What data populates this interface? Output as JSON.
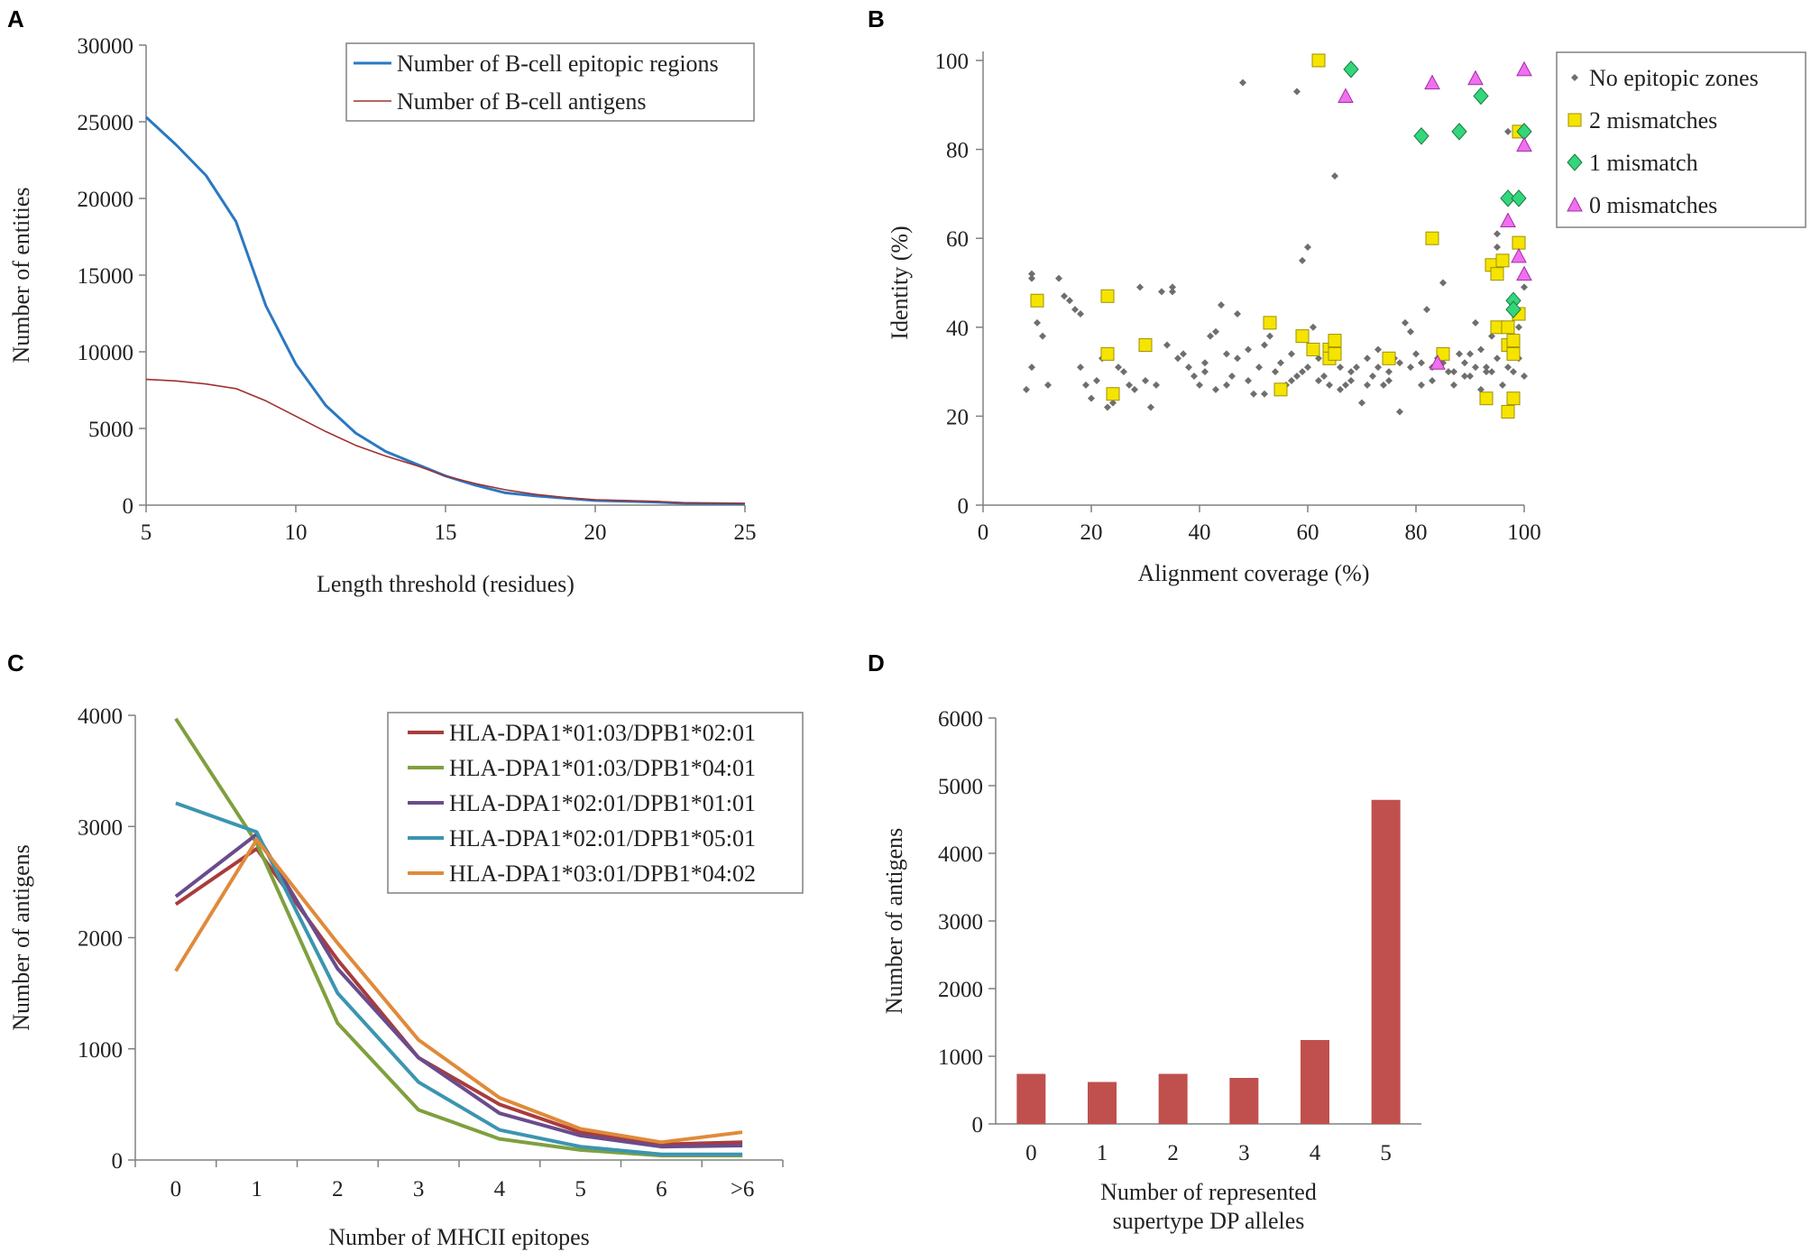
{
  "colors": {
    "axis": "#808080",
    "text": "#222222",
    "a_regions": "#2a78c2",
    "a_antigens": "#a03030",
    "b_none": "#6e6e6e",
    "b_two": "#f5e400",
    "b_one": "#33d67a",
    "b_zero": "#f06ef0",
    "c_series": [
      "#a83c3c",
      "#7fa03e",
      "#6a4c8c",
      "#3b95b0",
      "#e08a3a"
    ],
    "d_bar": "#c0504d"
  },
  "chart_data": [
    {
      "panel": "A",
      "type": "line",
      "xlabel": "Length threshold (residues)",
      "ylabel": "Number of entities",
      "xlim": [
        5,
        25
      ],
      "ylim": [
        0,
        30000
      ],
      "xticks": [
        "5",
        "10",
        "15",
        "20",
        "25"
      ],
      "yticks": [
        "0",
        "5000",
        "10000",
        "15000",
        "20000",
        "25000",
        "30000"
      ],
      "legend_position": "top-right",
      "x": [
        5,
        6,
        7,
        8,
        9,
        10,
        11,
        12,
        13,
        14,
        15,
        16,
        17,
        18,
        19,
        20,
        21,
        22,
        23,
        24,
        25
      ],
      "series": [
        {
          "name": "Number of B-cell epitopic regions",
          "values": [
            25300,
            23500,
            21500,
            18500,
            13000,
            9200,
            6500,
            4700,
            3500,
            2700,
            1900,
            1300,
            800,
            600,
            450,
            300,
            250,
            200,
            120,
            100,
            80
          ]
        },
        {
          "name": "Number of B-cell antigens",
          "values": [
            8200,
            8100,
            7900,
            7600,
            6800,
            5800,
            4800,
            3900,
            3200,
            2600,
            1900,
            1400,
            1000,
            700,
            500,
            350,
            300,
            250,
            150,
            120,
            100
          ]
        }
      ]
    },
    {
      "panel": "B",
      "type": "scatter",
      "xlabel": "Alignment coverage (%)",
      "ylabel": "Identity (%)",
      "xlim": [
        0,
        100
      ],
      "ylim": [
        0,
        100
      ],
      "xticks": [
        "0",
        "20",
        "40",
        "60",
        "80",
        "100"
      ],
      "yticks": [
        "0",
        "20",
        "40",
        "60",
        "80",
        "100"
      ],
      "legend_position": "top-right",
      "series": [
        {
          "name": "No epitopic zones",
          "points": [
            [
              8,
              26
            ],
            [
              9,
              52
            ],
            [
              9,
              51
            ],
            [
              9,
              31
            ],
            [
              10,
              41
            ],
            [
              11,
              38
            ],
            [
              12,
              27
            ],
            [
              14,
              51
            ],
            [
              15,
              47
            ],
            [
              16,
              46
            ],
            [
              17,
              44
            ],
            [
              18,
              43
            ],
            [
              18,
              31
            ],
            [
              19,
              27
            ],
            [
              20,
              24
            ],
            [
              21,
              28
            ],
            [
              22,
              33
            ],
            [
              23,
              22
            ],
            [
              24,
              23
            ],
            [
              25,
              31
            ],
            [
              26,
              30
            ],
            [
              27,
              27
            ],
            [
              28,
              26
            ],
            [
              29,
              49
            ],
            [
              30,
              28
            ],
            [
              31,
              22
            ],
            [
              32,
              27
            ],
            [
              33,
              48
            ],
            [
              34,
              36
            ],
            [
              35,
              48
            ],
            [
              35,
              49
            ],
            [
              36,
              33
            ],
            [
              37,
              34
            ],
            [
              38,
              31
            ],
            [
              39,
              29
            ],
            [
              40,
              27
            ],
            [
              41,
              32
            ],
            [
              42,
              38
            ],
            [
              43,
              39
            ],
            [
              44,
              45
            ],
            [
              45,
              34
            ],
            [
              46,
              29
            ],
            [
              47,
              43
            ],
            [
              48,
              95
            ],
            [
              49,
              35
            ],
            [
              50,
              25
            ],
            [
              51,
              31
            ],
            [
              52,
              36
            ],
            [
              53,
              38
            ],
            [
              54,
              30
            ],
            [
              56,
              27
            ],
            [
              57,
              34
            ],
            [
              58,
              93
            ],
            [
              58,
              29
            ],
            [
              59,
              55
            ],
            [
              60,
              58
            ],
            [
              60,
              31
            ],
            [
              61,
              40
            ],
            [
              62,
              28
            ],
            [
              63,
              29
            ],
            [
              64,
              34
            ],
            [
              65,
              74
            ],
            [
              66,
              26
            ],
            [
              67,
              27
            ],
            [
              68,
              28
            ],
            [
              69,
              31
            ],
            [
              70,
              23
            ],
            [
              71,
              33
            ],
            [
              72,
              29
            ],
            [
              73,
              35
            ],
            [
              74,
              27
            ],
            [
              75,
              30
            ],
            [
              76,
              33
            ],
            [
              77,
              21
            ],
            [
              78,
              41
            ],
            [
              79,
              39
            ],
            [
              80,
              34
            ],
            [
              81,
              32
            ],
            [
              82,
              44
            ],
            [
              83,
              31
            ],
            [
              84,
              33
            ],
            [
              85,
              50
            ],
            [
              86,
              30
            ],
            [
              87,
              27
            ],
            [
              88,
              34
            ],
            [
              89,
              32
            ],
            [
              90,
              29
            ],
            [
              91,
              41
            ],
            [
              92,
              35
            ],
            [
              93,
              31
            ],
            [
              94,
              38
            ],
            [
              95,
              58
            ],
            [
              96,
              27
            ],
            [
              97,
              84
            ],
            [
              98,
              30
            ],
            [
              99,
              33
            ],
            [
              100,
              29
            ],
            [
              41,
              30
            ],
            [
              43,
              26
            ],
            [
              45,
              27
            ],
            [
              47,
              33
            ],
            [
              49,
              28
            ],
            [
              52,
              25
            ],
            [
              55,
              32
            ],
            [
              57,
              28
            ],
            [
              59,
              30
            ],
            [
              62,
              33
            ],
            [
              64,
              27
            ],
            [
              66,
              31
            ],
            [
              68,
              30
            ],
            [
              71,
              27
            ],
            [
              73,
              31
            ],
            [
              75,
              28
            ],
            [
              77,
              32
            ],
            [
              79,
              31
            ],
            [
              81,
              27
            ],
            [
              83,
              28
            ],
            [
              85,
              32
            ],
            [
              87,
              30
            ],
            [
              89,
              29
            ],
            [
              91,
              31
            ],
            [
              93,
              30
            ],
            [
              95,
              33
            ],
            [
              97,
              31
            ],
            [
              99,
              40
            ],
            [
              96,
              55
            ],
            [
              95,
              61
            ],
            [
              100,
              49
            ],
            [
              98,
              38
            ],
            [
              94,
              30
            ],
            [
              92,
              26
            ],
            [
              90,
              34
            ]
          ]
        },
        {
          "name": "2 mismatches",
          "points": [
            [
              10,
              46
            ],
            [
              23,
              47
            ],
            [
              23,
              34
            ],
            [
              24,
              25
            ],
            [
              30,
              36
            ],
            [
              53,
              41
            ],
            [
              55,
              26
            ],
            [
              59,
              38
            ],
            [
              61,
              35
            ],
            [
              64,
              35
            ],
            [
              64,
              33
            ],
            [
              65,
              37
            ],
            [
              65,
              34
            ],
            [
              75,
              33
            ],
            [
              83,
              60
            ],
            [
              85,
              34
            ],
            [
              62,
              100
            ],
            [
              93,
              24
            ],
            [
              94,
              54
            ],
            [
              95,
              52
            ],
            [
              95,
              40
            ],
            [
              96,
              55
            ],
            [
              97,
              40
            ],
            [
              97,
              36
            ],
            [
              97,
              21
            ],
            [
              98,
              24
            ],
            [
              98,
              37
            ],
            [
              98,
              34
            ],
            [
              99,
              59
            ],
            [
              99,
              43
            ],
            [
              99,
              84
            ]
          ]
        },
        {
          "name": "1 mismatch",
          "points": [
            [
              68,
              98
            ],
            [
              81,
              83
            ],
            [
              88,
              84
            ],
            [
              92,
              92
            ],
            [
              97,
              69
            ],
            [
              98,
              46
            ],
            [
              98,
              44
            ],
            [
              99,
              69
            ],
            [
              100,
              84
            ]
          ]
        },
        {
          "name": "0 mismatches",
          "points": [
            [
              67,
              92
            ],
            [
              83,
              95
            ],
            [
              84,
              32
            ],
            [
              91,
              96
            ],
            [
              97,
              64
            ],
            [
              99,
              56
            ],
            [
              100,
              98
            ],
            [
              100,
              81
            ],
            [
              100,
              52
            ]
          ]
        }
      ]
    },
    {
      "panel": "C",
      "type": "line",
      "xlabel": "Number of MHCII epitopes",
      "ylabel": "Number of  antigens",
      "ylim": [
        0,
        4000
      ],
      "categories": [
        "0",
        "1",
        "2",
        "3",
        "4",
        "5",
        "6",
        ">6"
      ],
      "yticks": [
        "0",
        "1000",
        "2000",
        "3000",
        "4000"
      ],
      "legend_position": "top-right",
      "series": [
        {
          "name": "HLA-DPA1*01:03/DPB1*02:01",
          "values": [
            2300,
            2800,
            1800,
            920,
            500,
            250,
            140,
            160
          ]
        },
        {
          "name": "HLA-DPA1*01:03/DPB1*04:01",
          "values": [
            3970,
            2850,
            1230,
            450,
            190,
            90,
            40,
            40
          ]
        },
        {
          "name": "HLA-DPA1*02:01/DPB1*01:01",
          "values": [
            2370,
            2930,
            1720,
            920,
            420,
            220,
            120,
            130
          ]
        },
        {
          "name": "HLA-DPA1*02:01/DPB1*05:01",
          "values": [
            3210,
            2950,
            1500,
            700,
            270,
            120,
            50,
            50
          ]
        },
        {
          "name": "HLA-DPA1*03:01/DPB1*04:02",
          "values": [
            1700,
            2880,
            1950,
            1080,
            560,
            280,
            160,
            250
          ]
        }
      ]
    },
    {
      "panel": "D",
      "type": "bar",
      "xlabel_line1": "Number of represented",
      "xlabel_line2": "supertype DP alleles",
      "ylabel": "Number of antigens",
      "ylim": [
        0,
        6000
      ],
      "categories": [
        "0",
        "1",
        "2",
        "3",
        "4",
        "5"
      ],
      "yticks": [
        "0",
        "1000",
        "2000",
        "3000",
        "4000",
        "5000",
        "6000"
      ],
      "values": [
        740,
        620,
        740,
        680,
        1240,
        4790
      ]
    }
  ]
}
